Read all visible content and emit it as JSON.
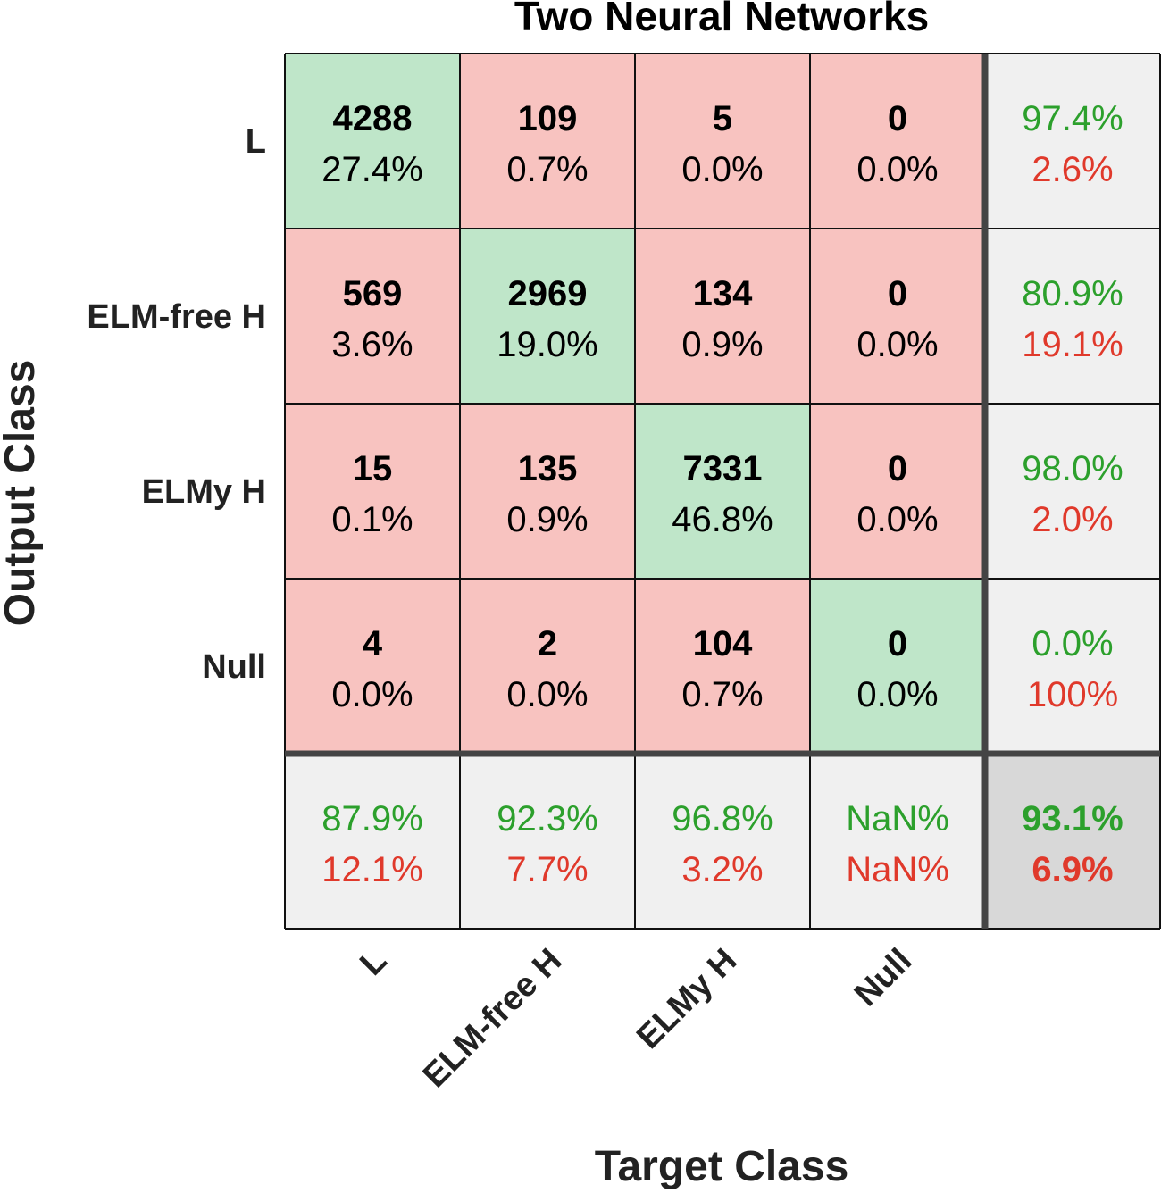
{
  "chart_data": {
    "type": "heatmap",
    "title": "Two Neural Networks",
    "xlabel": "Target Class",
    "ylabel": "Output Class",
    "row_labels": [
      "L",
      "ELM-free H",
      "ELMy H",
      "Null"
    ],
    "col_labels": [
      "L",
      "ELM-free H",
      "ELMy H",
      "Null"
    ],
    "matrix": [
      [
        4288,
        109,
        5,
        0
      ],
      [
        569,
        2969,
        134,
        0
      ],
      [
        15,
        135,
        7331,
        0
      ],
      [
        4,
        2,
        104,
        0
      ]
    ],
    "matrix_percent": [
      [
        "27.4%",
        "0.7%",
        "0.0%",
        "0.0%"
      ],
      [
        "3.6%",
        "19.0%",
        "0.9%",
        "0.0%"
      ],
      [
        "0.1%",
        "0.9%",
        "46.8%",
        "0.0%"
      ],
      [
        "0.0%",
        "0.0%",
        "0.7%",
        "0.0%"
      ]
    ],
    "row_summary": [
      {
        "correct": "97.4%",
        "incorrect": "2.6%"
      },
      {
        "correct": "80.9%",
        "incorrect": "19.1%"
      },
      {
        "correct": "98.0%",
        "incorrect": "2.0%"
      },
      {
        "correct": "0.0%",
        "incorrect": "100%"
      }
    ],
    "col_summary": [
      {
        "correct": "87.9%",
        "incorrect": "12.1%"
      },
      {
        "correct": "92.3%",
        "incorrect": "7.7%"
      },
      {
        "correct": "96.8%",
        "incorrect": "3.2%"
      },
      {
        "correct": "NaN%",
        "incorrect": "NaN%"
      }
    ],
    "overall": {
      "correct": "93.1%",
      "incorrect": "6.9%"
    },
    "colors": {
      "diagonal": "#bfe6c9",
      "off_diagonal": "#f8c3c0",
      "summary": "#f0f0f0",
      "overall": "#d8d8d8",
      "correct_text": "#2ca02c",
      "incorrect_text": "#e0392b"
    }
  }
}
